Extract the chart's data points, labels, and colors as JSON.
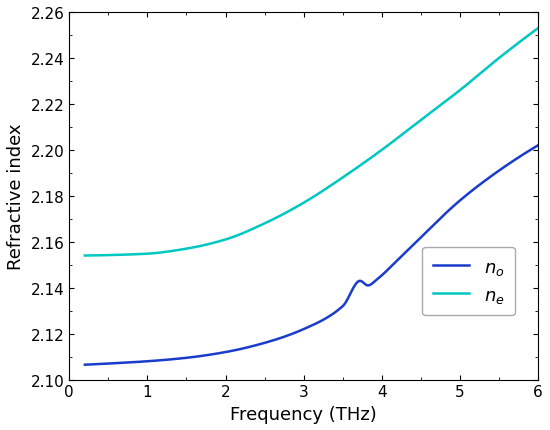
{
  "title": "",
  "xlabel": "Frequency (THz)",
  "ylabel": "Refractive index",
  "xlim": [
    0,
    6
  ],
  "ylim": [
    2.1,
    2.26
  ],
  "xticks": [
    0,
    1,
    2,
    3,
    4,
    5,
    6
  ],
  "yticks": [
    2.1,
    2.12,
    2.14,
    2.16,
    2.18,
    2.2,
    2.22,
    2.24,
    2.26
  ],
  "color_no": "#1a3ccc",
  "color_ne": "#00c8c0",
  "legend_labels": [
    "$n_o$",
    "$n_e$"
  ],
  "figsize": [
    5.5,
    4.31
  ],
  "dpi": 100,
  "background_color": "#ffffff",
  "no_x": [
    0.2,
    0.5,
    1.0,
    1.5,
    2.0,
    2.5,
    3.0,
    3.5,
    3.72,
    3.82,
    3.95,
    4.2,
    4.5,
    5.0,
    5.5,
    6.0
  ],
  "no_y": [
    2.1065,
    2.107,
    2.108,
    2.1095,
    2.112,
    2.116,
    2.122,
    2.132,
    2.143,
    2.141,
    2.144,
    2.152,
    2.162,
    2.178,
    2.191,
    2.202
  ],
  "ne_x": [
    0.2,
    0.5,
    1.0,
    1.5,
    2.0,
    2.5,
    3.0,
    3.5,
    4.0,
    4.5,
    5.0,
    5.5,
    6.0
  ],
  "ne_y": [
    2.154,
    2.1542,
    2.1548,
    2.157,
    2.161,
    2.168,
    2.177,
    2.188,
    2.2,
    2.213,
    2.226,
    2.24,
    2.253
  ]
}
